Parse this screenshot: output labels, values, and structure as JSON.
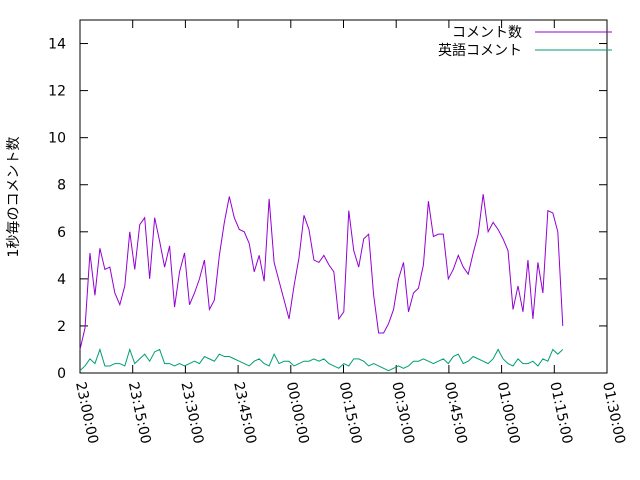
{
  "chart_data": {
    "type": "line",
    "y_label": "1秒毎のコメント数",
    "x": [
      "23:00:00",
      "23:01:25",
      "23:02:50",
      "23:04:15",
      "23:05:40",
      "23:07:05",
      "23:08:30",
      "23:09:55",
      "23:11:20",
      "23:12:45",
      "23:14:10",
      "23:15:35",
      "23:17:00",
      "23:18:25",
      "23:19:50",
      "23:21:15",
      "23:22:40",
      "23:24:05",
      "23:25:30",
      "23:26:55",
      "23:28:20",
      "23:29:45",
      "23:31:10",
      "23:32:35",
      "23:34:00",
      "23:35:25",
      "23:36:50",
      "23:38:15",
      "23:39:40",
      "23:41:05",
      "23:42:30",
      "23:43:55",
      "23:45:20",
      "23:46:45",
      "23:48:10",
      "23:49:35",
      "23:51:00",
      "23:52:25",
      "23:53:50",
      "23:55:15",
      "23:56:40",
      "23:58:05",
      "23:59:30",
      "00:00:55",
      "00:02:20",
      "00:03:45",
      "00:05:10",
      "00:06:35",
      "00:08:00",
      "00:09:25",
      "00:10:50",
      "00:12:15",
      "00:13:40",
      "00:15:05",
      "00:16:30",
      "00:17:55",
      "00:19:20",
      "00:20:45",
      "00:22:10",
      "00:23:35",
      "00:25:00",
      "00:26:25",
      "00:27:50",
      "00:29:15",
      "00:30:40",
      "00:32:05",
      "00:33:30",
      "00:34:55",
      "00:36:20",
      "00:37:45",
      "00:39:10",
      "00:40:35",
      "00:42:00",
      "00:43:25",
      "00:44:50",
      "00:46:15",
      "00:47:40",
      "00:49:05",
      "00:50:30",
      "00:51:55",
      "00:53:20",
      "00:54:45",
      "00:56:10",
      "00:57:35",
      "00:59:00",
      "01:00:25",
      "01:01:50",
      "01:03:15",
      "01:04:40",
      "01:06:05",
      "01:07:30",
      "01:08:55",
      "01:10:20",
      "01:11:45",
      "01:13:10",
      "01:14:35",
      "01:16:00",
      "01:17:25"
    ],
    "series": [
      {
        "name": "コメント数",
        "color": "#9400d3",
        "values": [
          1.0,
          1.9,
          5.1,
          3.3,
          5.3,
          4.4,
          4.5,
          3.4,
          2.9,
          3.7,
          6.0,
          4.4,
          6.3,
          6.6,
          4.0,
          6.6,
          5.6,
          4.5,
          5.4,
          2.8,
          4.3,
          5.1,
          2.9,
          3.4,
          4.0,
          4.8,
          2.7,
          3.1,
          5.0,
          6.4,
          7.5,
          6.6,
          6.1,
          6.0,
          5.5,
          4.3,
          5.0,
          3.9,
          7.4,
          4.7,
          3.9,
          3.1,
          2.3,
          3.7,
          4.9,
          6.7,
          6.1,
          4.8,
          4.7,
          5.0,
          4.6,
          4.3,
          2.3,
          2.6,
          6.9,
          5.2,
          4.5,
          5.7,
          5.9,
          3.3,
          1.7,
          1.7,
          2.1,
          2.7,
          4.0,
          4.7,
          2.6,
          3.4,
          3.6,
          4.6,
          7.3,
          5.8,
          5.9,
          5.9,
          4.0,
          4.4,
          5.0,
          4.5,
          4.2,
          5.1,
          5.9,
          7.6,
          6.0,
          6.4,
          6.1,
          5.7,
          5.2,
          2.7,
          3.7,
          2.6,
          4.8,
          2.3,
          4.7,
          3.4,
          6.9,
          6.8,
          6.0,
          2.0
        ]
      },
      {
        "name": "英語コメント",
        "color": "#009e73",
        "values": [
          0.1,
          0.3,
          0.6,
          0.4,
          1.0,
          0.3,
          0.3,
          0.4,
          0.4,
          0.3,
          1.0,
          0.4,
          0.6,
          0.8,
          0.5,
          0.9,
          1.0,
          0.4,
          0.4,
          0.3,
          0.4,
          0.3,
          0.4,
          0.5,
          0.4,
          0.7,
          0.6,
          0.5,
          0.8,
          0.7,
          0.7,
          0.6,
          0.5,
          0.4,
          0.3,
          0.5,
          0.6,
          0.4,
          0.3,
          0.8,
          0.4,
          0.5,
          0.5,
          0.3,
          0.4,
          0.5,
          0.5,
          0.6,
          0.5,
          0.6,
          0.4,
          0.3,
          0.2,
          0.4,
          0.3,
          0.6,
          0.6,
          0.5,
          0.3,
          0.4,
          0.3,
          0.2,
          0.1,
          0.2,
          0.3,
          0.2,
          0.3,
          0.5,
          0.5,
          0.6,
          0.5,
          0.4,
          0.5,
          0.6,
          0.4,
          0.7,
          0.8,
          0.4,
          0.5,
          0.7,
          0.6,
          0.5,
          0.4,
          0.6,
          1.0,
          0.6,
          0.4,
          0.3,
          0.6,
          0.4,
          0.4,
          0.5,
          0.3,
          0.6,
          0.5,
          1.0,
          0.8,
          1.0
        ]
      }
    ],
    "xlim": [
      "23:00:00",
      "01:30:00"
    ],
    "xticks": [
      "23:00:00",
      "23:15:00",
      "23:30:00",
      "23:45:00",
      "00:00:00",
      "00:15:00",
      "00:30:00",
      "00:45:00",
      "01:00:00",
      "01:15:00",
      "01:30:00"
    ],
    "ylim": [
      0,
      15
    ],
    "yticks": [
      0,
      2,
      4,
      6,
      8,
      10,
      12,
      14
    ],
    "legend": "top-right"
  }
}
